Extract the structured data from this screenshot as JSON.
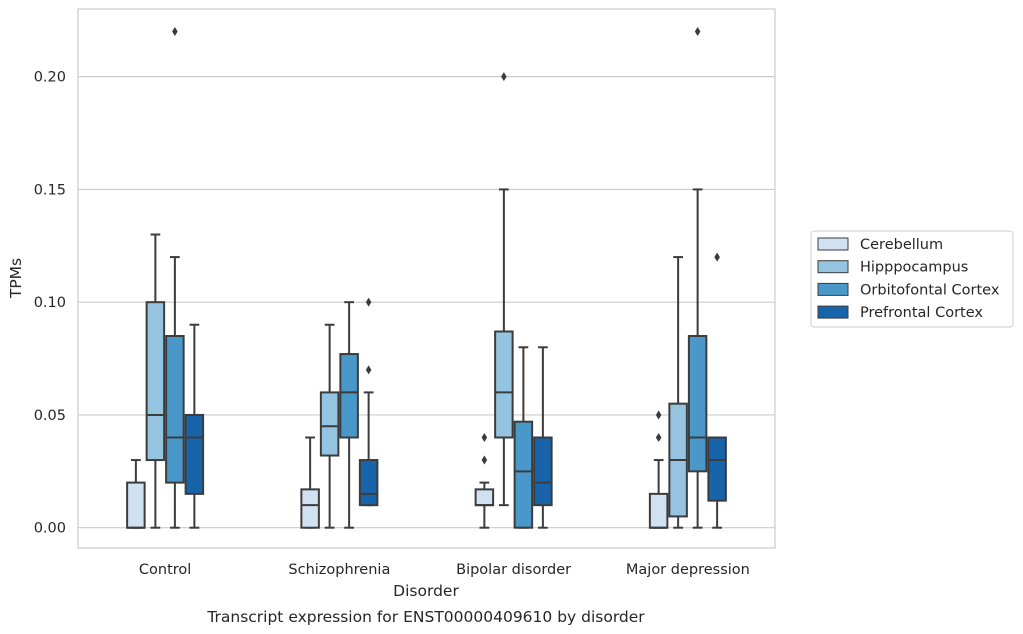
{
  "chart_data": {
    "type": "box",
    "title": "",
    "caption": "Transcript expression for ENST00000409610 by disorder",
    "xlabel": "Disorder",
    "ylabel": "TPMs",
    "ylim": [
      -0.009,
      0.23
    ],
    "yticks": [
      0.0,
      0.05,
      0.1,
      0.15,
      0.2
    ],
    "ytick_labels": [
      "0.00",
      "0.05",
      "0.10",
      "0.15",
      "0.20"
    ],
    "grid": "horizontal",
    "legend_position": "right",
    "categories": [
      "Control",
      "Schizophrenia",
      "Bipolar disorder",
      "Major depression"
    ],
    "series": [
      {
        "name": "Cerebellum",
        "color": "#d0e1f2",
        "boxes": [
          {
            "whislo": 0.0,
            "q1": 0.0,
            "med": 0.0,
            "q3": 0.02,
            "whishi": 0.03,
            "fliers": []
          },
          {
            "whislo": 0.0,
            "q1": 0.0,
            "med": 0.01,
            "q3": 0.017,
            "whishi": 0.04,
            "fliers": []
          },
          {
            "whislo": 0.0,
            "q1": 0.01,
            "med": 0.01,
            "q3": 0.017,
            "whishi": 0.02,
            "fliers": [
              0.03,
              0.04
            ]
          },
          {
            "whislo": 0.0,
            "q1": 0.0,
            "med": 0.0,
            "q3": 0.015,
            "whishi": 0.03,
            "fliers": [
              0.04,
              0.05
            ]
          }
        ]
      },
      {
        "name": "Hipppocampus",
        "color": "#94c4df",
        "boxes": [
          {
            "whislo": 0.0,
            "q1": 0.03,
            "med": 0.05,
            "q3": 0.1,
            "whishi": 0.13,
            "fliers": []
          },
          {
            "whislo": 0.0,
            "q1": 0.032,
            "med": 0.045,
            "q3": 0.06,
            "whishi": 0.09,
            "fliers": []
          },
          {
            "whislo": 0.01,
            "q1": 0.04,
            "med": 0.06,
            "q3": 0.087,
            "whishi": 0.15,
            "fliers": [
              0.2
            ]
          },
          {
            "whislo": 0.0,
            "q1": 0.005,
            "med": 0.03,
            "q3": 0.055,
            "whishi": 0.12,
            "fliers": []
          }
        ]
      },
      {
        "name": "Orbitofontal Cortex",
        "color": "#4a98c9",
        "boxes": [
          {
            "whislo": 0.0,
            "q1": 0.02,
            "med": 0.04,
            "q3": 0.085,
            "whishi": 0.12,
            "fliers": [
              0.22
            ]
          },
          {
            "whislo": 0.0,
            "q1": 0.04,
            "med": 0.06,
            "q3": 0.077,
            "whishi": 0.1,
            "fliers": []
          },
          {
            "whislo": 0.0,
            "q1": 0.0,
            "med": 0.025,
            "q3": 0.047,
            "whishi": 0.08,
            "fliers": []
          },
          {
            "whislo": 0.0,
            "q1": 0.025,
            "med": 0.04,
            "q3": 0.085,
            "whishi": 0.15,
            "fliers": [
              0.22
            ]
          }
        ]
      },
      {
        "name": "Prefrontal Cortex",
        "color": "#1764ab",
        "boxes": [
          {
            "whislo": 0.0,
            "q1": 0.015,
            "med": 0.04,
            "q3": 0.05,
            "whishi": 0.09,
            "fliers": []
          },
          {
            "whislo": 0.01,
            "q1": 0.01,
            "med": 0.015,
            "q3": 0.03,
            "whishi": 0.06,
            "fliers": [
              0.07,
              0.1
            ]
          },
          {
            "whislo": 0.0,
            "q1": 0.01,
            "med": 0.02,
            "q3": 0.04,
            "whishi": 0.08,
            "fliers": []
          },
          {
            "whislo": 0.0,
            "q1": 0.012,
            "med": 0.03,
            "q3": 0.04,
            "whishi": 0.04,
            "fliers": [
              0.12
            ]
          }
        ]
      }
    ]
  }
}
